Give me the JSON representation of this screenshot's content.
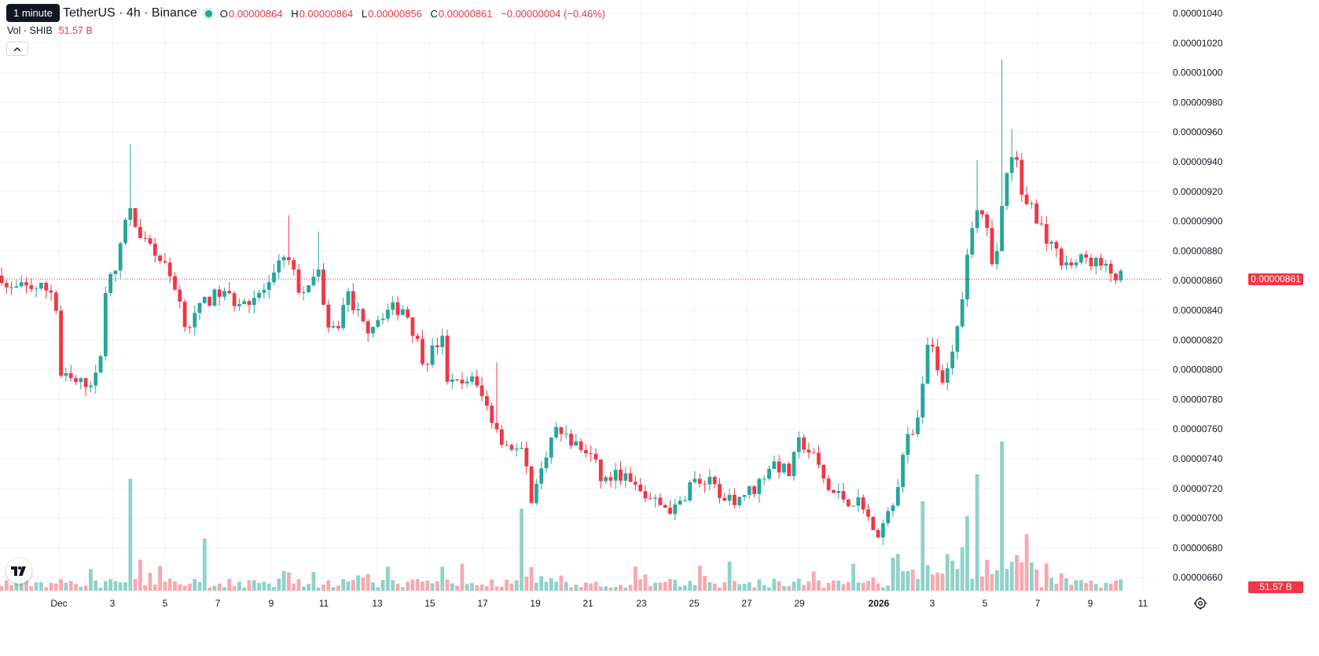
{
  "header": {
    "tooltip": "1 minute",
    "symbol": "TetherUS · 4h · Binance",
    "ohlc": [
      {
        "label": "O",
        "value": "0.00000864"
      },
      {
        "label": "H",
        "value": "0.00000864"
      },
      {
        "label": "L",
        "value": "0.00000856"
      },
      {
        "label": "C",
        "value": "0.00000861"
      }
    ],
    "change": "−0.00000004 (−0.46%)",
    "volume_label": "Vol · SHIB",
    "volume_value": "51.57 B"
  },
  "price_axis": {
    "labels": [
      "0.00001040",
      "0.00001020",
      "0.00001000",
      "0.00000980",
      "0.00000960",
      "0.00000940",
      "0.00000920",
      "0.00000900",
      "0.00000880",
      "0.00000860",
      "0.00000840",
      "0.00000820",
      "0.00000800",
      "0.00000780",
      "0.00000760",
      "0.00000740",
      "0.00000720",
      "0.00000700",
      "0.00000680",
      "0.00000660"
    ],
    "current_price_label": "0.00000861",
    "current_volume_label": "51.57 B"
  },
  "time_axis": {
    "labels": [
      "Dec",
      "3",
      "5",
      "7",
      "9",
      "11",
      "13",
      "15",
      "17",
      "19",
      "21",
      "23",
      "25",
      "27",
      "29",
      "2026",
      "3",
      "5",
      "7",
      "9",
      "11"
    ]
  },
  "colors": {
    "up": "#26a69a",
    "down": "#f23645",
    "grid": "#f0f3fa",
    "up_volume": "#8fd2c9",
    "down_volume": "#f7a9b0"
  },
  "icons": {
    "collapse": "chevron-up-icon",
    "logo": "tradingview-logo-icon",
    "settings": "gear-icon"
  },
  "chart_data": {
    "type": "candlestick",
    "interval": "4h",
    "last_close": 8.61e-06,
    "anchors": [
      [
        0,
        8.66e-06
      ],
      [
        10,
        8.53e-06
      ],
      [
        40,
        8.56e-06
      ],
      [
        70,
        8.53e-06
      ],
      [
        76,
        7.96e-06
      ],
      [
        100,
        7.9e-06
      ],
      [
        126,
        7.95e-06
      ],
      [
        132,
        8.52e-06
      ],
      [
        150,
        8.7e-06
      ],
      [
        162,
        9.12e-06
      ],
      [
        178,
        8.87e-06
      ],
      [
        200,
        8.77e-06
      ],
      [
        222,
        8.58e-06
      ],
      [
        238,
        8.28e-06
      ],
      [
        260,
        8.45e-06
      ],
      [
        280,
        8.52e-06
      ],
      [
        300,
        8.46e-06
      ],
      [
        320,
        8.48e-06
      ],
      [
        345,
        8.56e-06
      ],
      [
        362,
        8.8e-06
      ],
      [
        380,
        8.55e-06
      ],
      [
        396,
        8.52e-06
      ],
      [
        404,
        8.76e-06
      ],
      [
        416,
        8.23e-06
      ],
      [
        430,
        8.3e-06
      ],
      [
        442,
        8.52e-06
      ],
      [
        465,
        8.27e-06
      ],
      [
        490,
        8.4e-06
      ],
      [
        515,
        8.42e-06
      ],
      [
        540,
        8.05e-06
      ],
      [
        562,
        8.22e-06
      ],
      [
        570,
        7.9e-06
      ],
      [
        590,
        7.9e-06
      ],
      [
        596,
        7.97e-06
      ],
      [
        615,
        7.8e-06
      ],
      [
        640,
        7.52e-06
      ],
      [
        668,
        7.42e-06
      ],
      [
        676,
        7.05e-06
      ],
      [
        690,
        7.4e-06
      ],
      [
        708,
        7.6e-06
      ],
      [
        730,
        7.5e-06
      ],
      [
        752,
        7.42e-06
      ],
      [
        766,
        7.25e-06
      ],
      [
        790,
        7.3e-06
      ],
      [
        812,
        7.18e-06
      ],
      [
        835,
        7.1e-06
      ],
      [
        860,
        7.05e-06
      ],
      [
        880,
        7.25e-06
      ],
      [
        906,
        7.23e-06
      ],
      [
        918,
        7.08e-06
      ],
      [
        940,
        7.15e-06
      ],
      [
        960,
        7.2e-06
      ],
      [
        982,
        7.38e-06
      ],
      [
        1004,
        7.3e-06
      ],
      [
        1018,
        7.53e-06
      ],
      [
        1036,
        7.4e-06
      ],
      [
        1055,
        7.18e-06
      ],
      [
        1080,
        7.12e-06
      ],
      [
        1100,
        7.1e-06
      ],
      [
        1110,
        6.88e-06
      ],
      [
        1128,
        6.98e-06
      ],
      [
        1140,
        7.2e-06
      ],
      [
        1152,
        7.5e-06
      ],
      [
        1166,
        7.6e-06
      ],
      [
        1176,
        8.05e-06
      ],
      [
        1184,
        8.25e-06
      ],
      [
        1196,
        7.85e-06
      ],
      [
        1208,
        8e-06
      ],
      [
        1222,
        8.4e-06
      ],
      [
        1230,
        8.8e-06
      ],
      [
        1240,
        9.1e-06
      ],
      [
        1254,
        9e-06
      ],
      [
        1264,
        8.65e-06
      ],
      [
        1272,
        8.95e-06
      ],
      [
        1280,
        9.3e-06
      ],
      [
        1290,
        9.55e-06
      ],
      [
        1300,
        9.15e-06
      ],
      [
        1312,
        9.1e-06
      ],
      [
        1326,
        8.95e-06
      ],
      [
        1340,
        8.8e-06
      ],
      [
        1360,
        8.7e-06
      ],
      [
        1380,
        8.75e-06
      ],
      [
        1395,
        8.72e-06
      ],
      [
        1410,
        8.66e-06
      ],
      [
        1420,
        8.63e-06
      ],
      [
        1430,
        8.61e-06
      ]
    ],
    "spikes": [
      {
        "x": 166,
        "high": 9.52e-06
      },
      {
        "x": 367,
        "high": 9.04e-06
      },
      {
        "x": 406,
        "high": 8.93e-06
      },
      {
        "x": 631,
        "high": 8.05e-06
      },
      {
        "x": 1276,
        "high": 1.009e-05
      },
      {
        "x": 1287,
        "high": 9.62e-06
      },
      {
        "x": 1242,
        "high": 9.41e-06
      }
    ],
    "volume_spikes": [
      {
        "x": 166,
        "v": 0.75
      },
      {
        "x": 260,
        "v": 0.35
      },
      {
        "x": 663,
        "v": 0.55
      },
      {
        "x": 1174,
        "v": 0.6
      },
      {
        "x": 1242,
        "v": 0.78
      },
      {
        "x": 1276,
        "v": 1.0
      },
      {
        "x": 1230,
        "v": 0.5
      },
      {
        "x": 1306,
        "v": 0.38
      }
    ]
  }
}
